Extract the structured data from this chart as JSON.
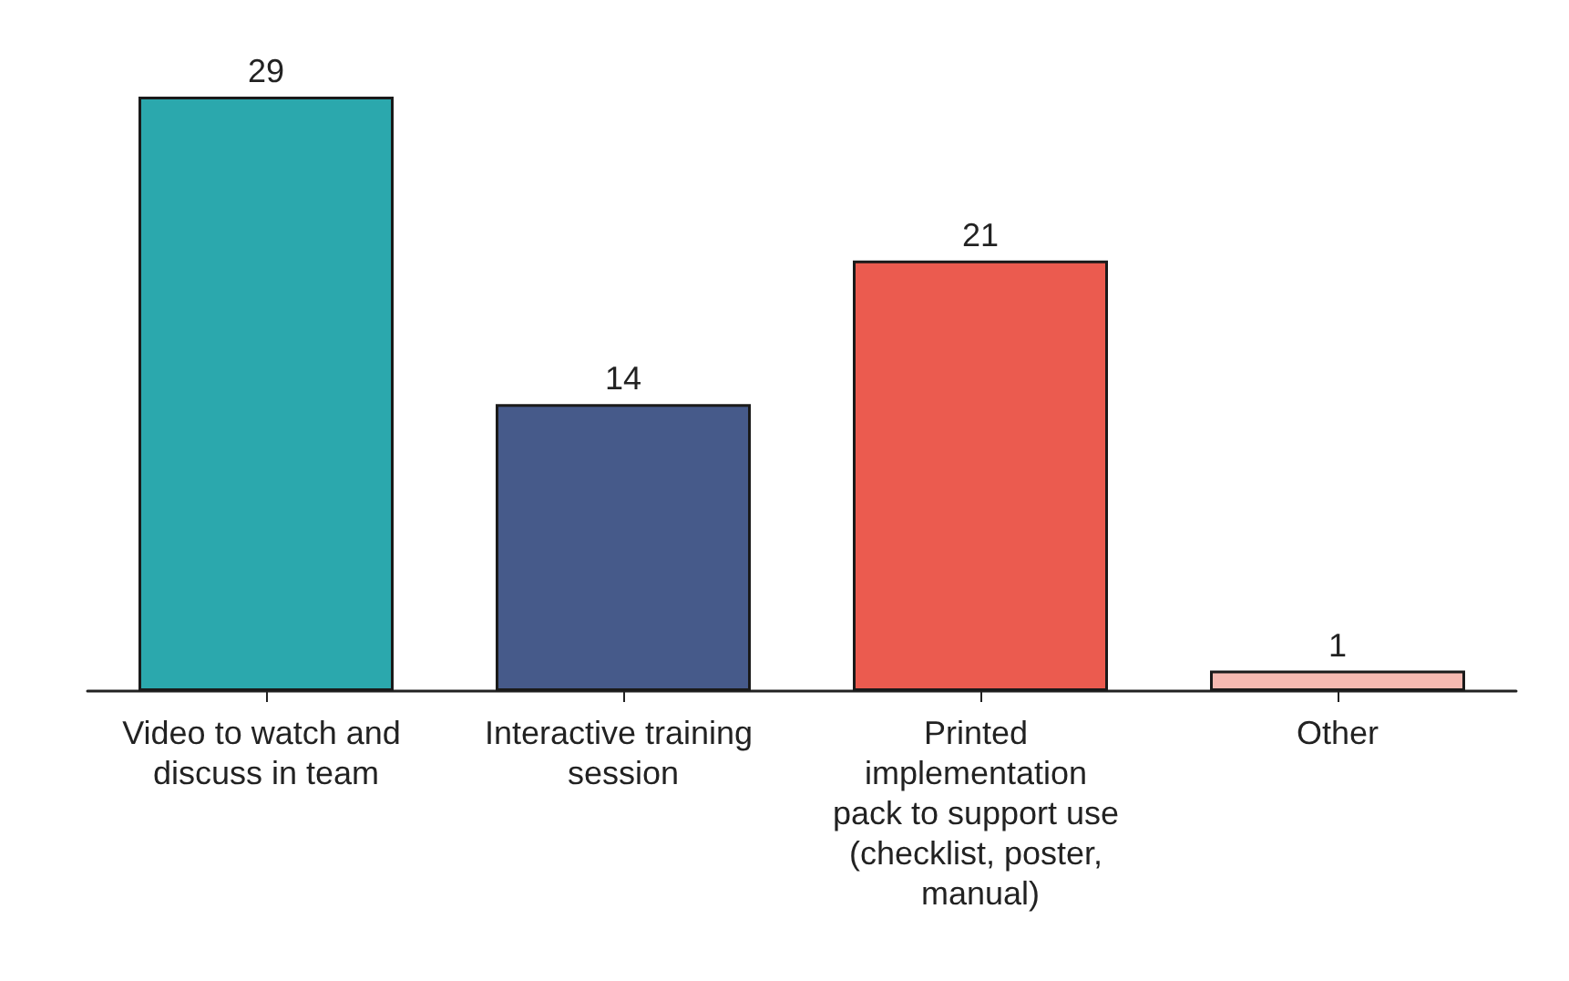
{
  "chart_data": {
    "type": "bar",
    "categories": [
      "Video to watch and discuss in team",
      "Interactive training session",
      "Printed implementation pack to support use (checklist, poster, manual)",
      "Other"
    ],
    "values": [
      29,
      14,
      21,
      1
    ],
    "colors": [
      "#2ba8ad",
      "#465a8a",
      "#eb5b4f",
      "#f5b9b1"
    ],
    "data_labels": true
  }
}
